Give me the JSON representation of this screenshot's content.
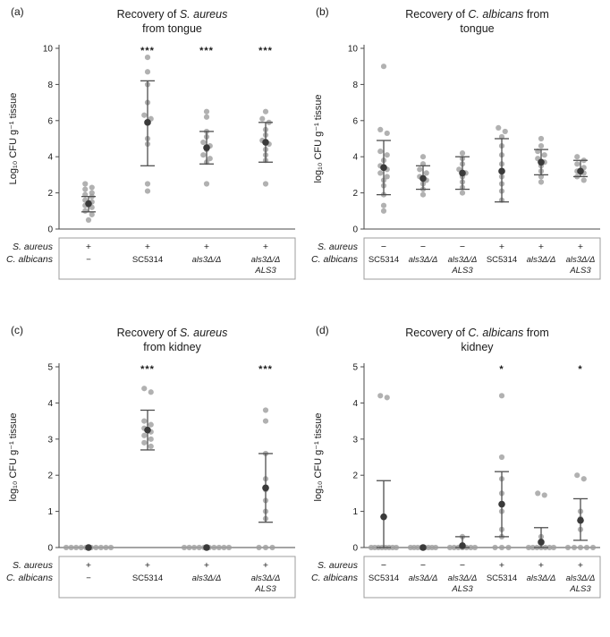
{
  "figure": {
    "row_labels": [
      "S. aureus",
      "C. albicans"
    ],
    "colors": {
      "point": "#9e9e9e",
      "mean": "#3a3a3a",
      "error": "#4f4f4f",
      "axis": "#4a4a4a",
      "box_border": "#9c9c9c",
      "text": "#1a1a1a"
    }
  },
  "chart_data": [
    {
      "type": "scatter",
      "label": "(a)",
      "title": "Recovery of S. aureus from tongue",
      "title_lines": [
        [
          {
            "t": "Recovery of ",
            "i": 0
          },
          {
            "t": "S. aureus",
            "i": 1
          }
        ],
        [
          {
            "t": "from tongue",
            "i": 0
          }
        ]
      ],
      "ylabel": "Log₁₀ CFU g⁻¹ tissue",
      "ylim": [
        0,
        10
      ],
      "yticks": [
        0,
        2,
        4,
        6,
        8,
        10
      ],
      "groups": [
        {
          "sa": "+",
          "ca": [
            "−"
          ],
          "ca_italic": false,
          "sig": "",
          "points": [
            2.5,
            2.3,
            2.2,
            2.0,
            1.9,
            1.8,
            1.6,
            1.5,
            1.3,
            1.2,
            1.0,
            0.8,
            0.5
          ],
          "mean": 1.4,
          "lo": 0.95,
          "hi": 1.8
        },
        {
          "sa": "+",
          "ca": [
            "SC5314"
          ],
          "ca_italic": false,
          "sig": "***",
          "points": [
            9.5,
            8.7,
            8.0,
            7.0,
            6.3,
            6.1,
            5.9,
            5.0,
            4.7,
            2.5,
            2.1
          ],
          "mean": 5.9,
          "lo": 3.5,
          "hi": 8.2
        },
        {
          "sa": "+",
          "ca": [
            "als3Δ/Δ"
          ],
          "ca_italic": true,
          "sig": "***",
          "points": [
            6.5,
            6.2,
            5.4,
            5.1,
            4.8,
            4.6,
            4.4,
            4.1,
            3.9,
            3.7,
            2.5
          ],
          "mean": 4.5,
          "lo": 3.6,
          "hi": 5.4
        },
        {
          "sa": "+",
          "ca": [
            "als3Δ/Δ",
            "ALS3"
          ],
          "ca_italic": true,
          "sig": "***",
          "points": [
            6.5,
            6.1,
            5.9,
            5.5,
            5.2,
            4.9,
            4.7,
            4.4,
            4.1,
            3.8,
            2.5
          ],
          "mean": 4.8,
          "lo": 3.7,
          "hi": 5.9
        }
      ]
    },
    {
      "type": "scatter",
      "label": "(b)",
      "title": "Recovery of C. albicans from tongue",
      "title_lines": [
        [
          {
            "t": "Recovery of ",
            "i": 0
          },
          {
            "t": "C. albicans",
            "i": 1
          },
          {
            "t": " from",
            "i": 0
          }
        ],
        [
          {
            "t": "tongue",
            "i": 0
          }
        ]
      ],
      "ylabel": "log₁₀ CFU g⁻¹ tissue",
      "ylim": [
        0,
        10
      ],
      "yticks": [
        0,
        2,
        4,
        6,
        8,
        10
      ],
      "groups": [
        {
          "sa": "−",
          "ca": [
            "SC5314"
          ],
          "ca_italic": false,
          "sig": "",
          "points": [
            9.0,
            5.5,
            5.3,
            4.3,
            4.1,
            3.8,
            3.5,
            3.3,
            3.1,
            2.9,
            2.7,
            2.4,
            1.9,
            1.3,
            1.0
          ],
          "mean": 3.4,
          "lo": 1.9,
          "hi": 4.9
        },
        {
          "sa": "−",
          "ca": [
            "als3Δ/Δ"
          ],
          "ca_italic": true,
          "sig": "",
          "points": [
            4.0,
            3.6,
            3.3,
            3.1,
            2.9,
            2.7,
            2.5,
            2.2,
            1.9
          ],
          "mean": 2.8,
          "lo": 2.2,
          "hi": 3.5
        },
        {
          "sa": "−",
          "ca": [
            "als3Δ/Δ",
            "ALS3"
          ],
          "ca_italic": true,
          "sig": "",
          "points": [
            4.2,
            3.9,
            3.6,
            3.3,
            3.1,
            2.9,
            2.6,
            2.3,
            2.0
          ],
          "mean": 3.1,
          "lo": 2.2,
          "hi": 4.0
        },
        {
          "sa": "+",
          "ca": [
            "SC5314"
          ],
          "ca_italic": false,
          "sig": "",
          "points": [
            5.6,
            5.4,
            5.1,
            4.6,
            4.1,
            3.6,
            3.2,
            2.9,
            2.5,
            2.1,
            1.6
          ],
          "mean": 3.2,
          "lo": 1.5,
          "hi": 5.0
        },
        {
          "sa": "+",
          "ca": [
            "als3Δ/Δ"
          ],
          "ca_italic": true,
          "sig": "",
          "points": [
            5.0,
            4.6,
            4.3,
            4.1,
            3.9,
            3.7,
            3.5,
            3.2,
            2.9,
            2.6
          ],
          "mean": 3.7,
          "lo": 3.0,
          "hi": 4.4
        },
        {
          "sa": "+",
          "ca": [
            "als3Δ/Δ",
            "ALS3"
          ],
          "ca_italic": true,
          "sig": "",
          "points": [
            4.0,
            3.8,
            3.6,
            3.4,
            3.2,
            3.1,
            2.9,
            2.7
          ],
          "mean": 3.2,
          "lo": 2.9,
          "hi": 3.8
        }
      ]
    },
    {
      "type": "scatter",
      "label": "(c)",
      "title": "Recovery of S. aureus from kidney",
      "title_lines": [
        [
          {
            "t": "Recovery of ",
            "i": 0
          },
          {
            "t": "S. aureus",
            "i": 1
          }
        ],
        [
          {
            "t": "from kidney",
            "i": 0
          }
        ]
      ],
      "ylabel": "log₁₀ CFU g⁻¹ tissue",
      "ylim": [
        0,
        5
      ],
      "yticks": [
        0,
        1,
        2,
        3,
        4,
        5
      ],
      "groups": [
        {
          "sa": "+",
          "ca": [
            "−"
          ],
          "ca_italic": false,
          "sig": "",
          "points": [
            0,
            0,
            0,
            0,
            0,
            0,
            0,
            0,
            0,
            0
          ],
          "mean": 0,
          "lo": 0,
          "hi": 0
        },
        {
          "sa": "+",
          "ca": [
            "SC5314"
          ],
          "ca_italic": false,
          "sig": "***",
          "points": [
            4.4,
            4.3,
            3.5,
            3.4,
            3.3,
            3.2,
            3.1,
            3.0,
            2.9,
            2.8
          ],
          "mean": 3.25,
          "lo": 2.7,
          "hi": 3.8
        },
        {
          "sa": "+",
          "ca": [
            "als3Δ/Δ"
          ],
          "ca_italic": true,
          "sig": "",
          "points": [
            0,
            0,
            0,
            0,
            0,
            0,
            0,
            0,
            0,
            0
          ],
          "mean": 0,
          "lo": 0,
          "hi": 0
        },
        {
          "sa": "+",
          "ca": [
            "als3Δ/Δ",
            "ALS3"
          ],
          "ca_italic": true,
          "sig": "***",
          "points": [
            3.8,
            3.5,
            2.6,
            1.9,
            1.6,
            1.3,
            1.0,
            0.8,
            0,
            0,
            0
          ],
          "mean": 1.65,
          "lo": 0.7,
          "hi": 2.6
        }
      ]
    },
    {
      "type": "scatter",
      "label": "(d)",
      "title": "Recovery of C. albicans from kidney",
      "title_lines": [
        [
          {
            "t": "Recovery of ",
            "i": 0
          },
          {
            "t": "C. albicans",
            "i": 1
          },
          {
            "t": " from",
            "i": 0
          }
        ],
        [
          {
            "t": "kidney",
            "i": 0
          }
        ]
      ],
      "ylabel": "log₁₀ CFU g⁻¹ tissue",
      "ylim": [
        0,
        5
      ],
      "yticks": [
        0,
        1,
        2,
        3,
        4,
        5
      ],
      "groups": [
        {
          "sa": "−",
          "ca": [
            "SC5314"
          ],
          "ca_italic": false,
          "sig": "",
          "points": [
            4.2,
            4.15,
            0,
            0,
            0,
            0,
            0,
            0,
            0,
            0
          ],
          "mean": 0.85,
          "lo": 0,
          "hi": 1.85
        },
        {
          "sa": "−",
          "ca": [
            "als3Δ/Δ"
          ],
          "ca_italic": true,
          "sig": "",
          "points": [
            0,
            0,
            0,
            0,
            0,
            0,
            0,
            0
          ],
          "mean": 0,
          "lo": 0,
          "hi": 0
        },
        {
          "sa": "−",
          "ca": [
            "als3Δ/Δ",
            "ALS3"
          ],
          "ca_italic": true,
          "sig": "",
          "points": [
            0.3,
            0,
            0,
            0,
            0,
            0,
            0,
            0
          ],
          "mean": 0.05,
          "lo": 0,
          "hi": 0.3
        },
        {
          "sa": "+",
          "ca": [
            "SC5314"
          ],
          "ca_italic": false,
          "sig": "*",
          "points": [
            4.2,
            2.5,
            1.9,
            1.5,
            1.2,
            1.0,
            0.5,
            0.3,
            0,
            0,
            0
          ],
          "mean": 1.2,
          "lo": 0.3,
          "hi": 2.1
        },
        {
          "sa": "+",
          "ca": [
            "als3Δ/Δ"
          ],
          "ca_italic": true,
          "sig": "",
          "points": [
            1.5,
            1.45,
            0.3,
            0,
            0,
            0,
            0,
            0,
            0,
            0
          ],
          "mean": 0.15,
          "lo": 0,
          "hi": 0.55
        },
        {
          "sa": "+",
          "ca": [
            "als3Δ/Δ",
            "ALS3"
          ],
          "ca_italic": true,
          "sig": "*",
          "points": [
            2.0,
            1.9,
            1.0,
            0.8,
            0.5,
            0,
            0,
            0,
            0,
            0
          ],
          "mean": 0.75,
          "lo": 0.2,
          "hi": 1.35
        }
      ]
    }
  ]
}
